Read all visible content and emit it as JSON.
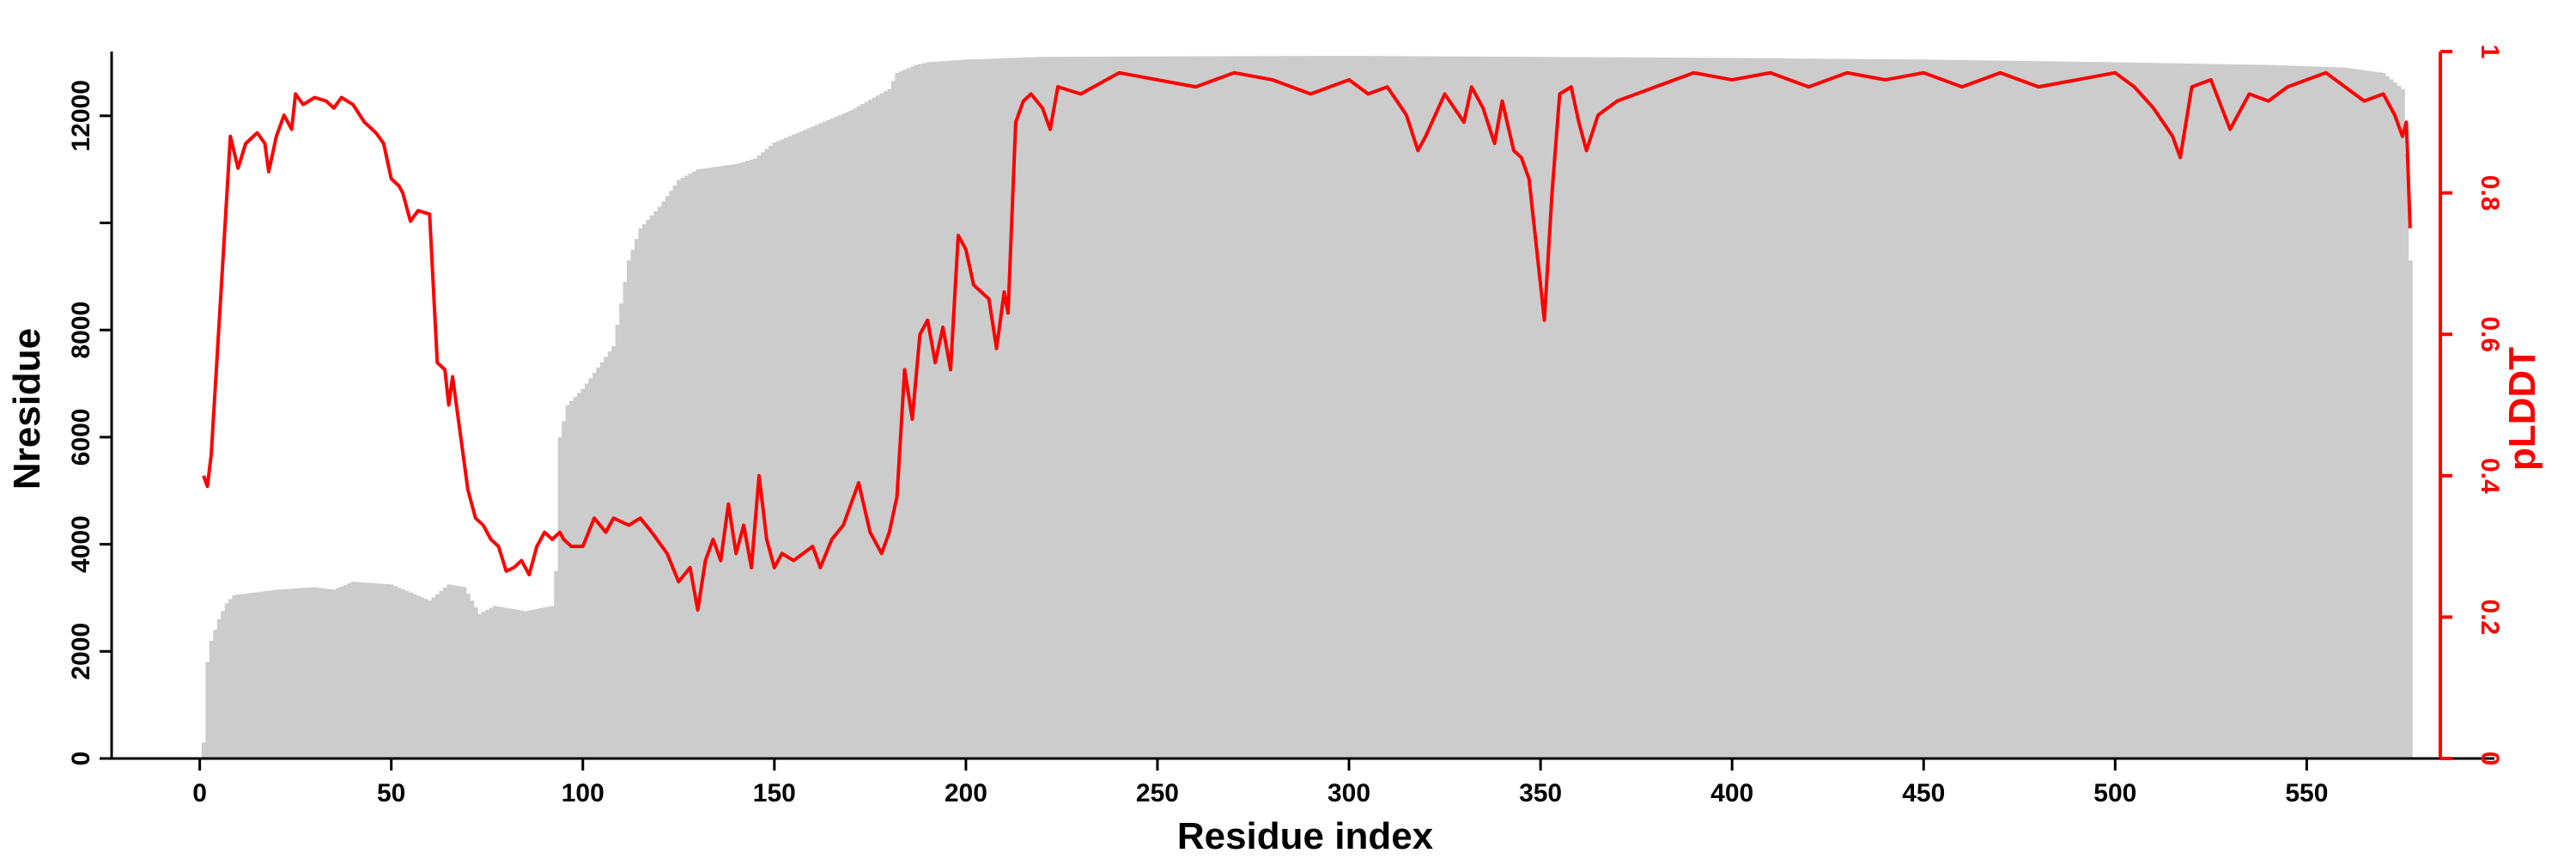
{
  "chart_data": {
    "type": "bar+line",
    "title": "",
    "xlabel": "Residue index",
    "ylabel_left": "Nresidue",
    "ylabel_right": "pLDDT",
    "xlim": [
      -23,
      599
    ],
    "ylim_left": [
      0,
      13200
    ],
    "ylim_right": [
      0,
      1
    ],
    "x_ticks": [
      0,
      50,
      100,
      150,
      200,
      250,
      300,
      350,
      400,
      450,
      500,
      550
    ],
    "y_left_ticks": [
      0,
      2000,
      4000,
      6000,
      8000,
      10000,
      12000
    ],
    "y_left_tick_labels": [
      "0",
      "2000",
      "4000",
      "6000",
      "8000",
      "",
      "12000"
    ],
    "y_right_ticks": [
      0,
      0.2,
      0.4,
      0.6,
      0.8,
      1
    ],
    "y_right_tick_labels": [
      "0",
      "0.2",
      "0.4",
      "0.6",
      "0.8",
      "1"
    ],
    "grid": false,
    "colors": {
      "bars": "#cccccc",
      "line": "#ff0000",
      "axis": "#000000",
      "right_axis": "#ff0000"
    },
    "series": [
      {
        "kind": "bar",
        "axis": "left",
        "x_step": 1,
        "keypoints": [
          [
            1,
            300
          ],
          [
            2,
            1800
          ],
          [
            3,
            2200
          ],
          [
            5,
            2600
          ],
          [
            7,
            2900
          ],
          [
            9,
            3050
          ],
          [
            20,
            3150
          ],
          [
            30,
            3200
          ],
          [
            35,
            3150
          ],
          [
            40,
            3300
          ],
          [
            50,
            3250
          ],
          [
            55,
            3100
          ],
          [
            60,
            2950
          ],
          [
            65,
            3250
          ],
          [
            69,
            3200
          ],
          [
            73,
            2700
          ],
          [
            77,
            2850
          ],
          [
            85,
            2750
          ],
          [
            92,
            2850
          ],
          [
            93,
            3500
          ],
          [
            94,
            6000
          ],
          [
            96,
            6600
          ],
          [
            100,
            6900
          ],
          [
            103,
            7200
          ],
          [
            108,
            7700
          ],
          [
            110,
            8500
          ],
          [
            112,
            9300
          ],
          [
            115,
            9900
          ],
          [
            120,
            10300
          ],
          [
            125,
            10800
          ],
          [
            130,
            11000
          ],
          [
            140,
            11100
          ],
          [
            145,
            11200
          ],
          [
            150,
            11500
          ],
          [
            160,
            11800
          ],
          [
            170,
            12100
          ],
          [
            175,
            12300
          ],
          [
            180,
            12500
          ],
          [
            182,
            12800
          ],
          [
            187,
            12950
          ],
          [
            190,
            13000
          ],
          [
            200,
            13050
          ],
          [
            220,
            13100
          ],
          [
            250,
            13110
          ],
          [
            300,
            13120
          ],
          [
            350,
            13100
          ],
          [
            400,
            13080
          ],
          [
            450,
            13050
          ],
          [
            500,
            13000
          ],
          [
            540,
            12950
          ],
          [
            560,
            12900
          ],
          [
            570,
            12800
          ],
          [
            575,
            12500
          ],
          [
            576,
            11300
          ],
          [
            577,
            9300
          ]
        ]
      },
      {
        "kind": "line",
        "axis": "right",
        "keypoints": [
          [
            1,
            0.4
          ],
          [
            2,
            0.385
          ],
          [
            3,
            0.43
          ],
          [
            4,
            0.52
          ],
          [
            6,
            0.7
          ],
          [
            8,
            0.88
          ],
          [
            10,
            0.835
          ],
          [
            12,
            0.87
          ],
          [
            15,
            0.885
          ],
          [
            17,
            0.87
          ],
          [
            18,
            0.83
          ],
          [
            20,
            0.88
          ],
          [
            22,
            0.91
          ],
          [
            24,
            0.89
          ],
          [
            25,
            0.94
          ],
          [
            27,
            0.925
          ],
          [
            30,
            0.935
          ],
          [
            33,
            0.93
          ],
          [
            35,
            0.92
          ],
          [
            37,
            0.935
          ],
          [
            40,
            0.925
          ],
          [
            43,
            0.9
          ],
          [
            46,
            0.885
          ],
          [
            48,
            0.87
          ],
          [
            50,
            0.82
          ],
          [
            52,
            0.81
          ],
          [
            53,
            0.8
          ],
          [
            55,
            0.76
          ],
          [
            57,
            0.775
          ],
          [
            60,
            0.77
          ],
          [
            62,
            0.56
          ],
          [
            64,
            0.55
          ],
          [
            65,
            0.5
          ],
          [
            66,
            0.54
          ],
          [
            67,
            0.5
          ],
          [
            68,
            0.46
          ],
          [
            70,
            0.38
          ],
          [
            72,
            0.34
          ],
          [
            74,
            0.33
          ],
          [
            76,
            0.31
          ],
          [
            78,
            0.3
          ],
          [
            80,
            0.265
          ],
          [
            82,
            0.27
          ],
          [
            84,
            0.28
          ],
          [
            86,
            0.26
          ],
          [
            88,
            0.3
          ],
          [
            90,
            0.32
          ],
          [
            92,
            0.31
          ],
          [
            94,
            0.32
          ],
          [
            95,
            0.31
          ],
          [
            97,
            0.3
          ],
          [
            100,
            0.3
          ],
          [
            103,
            0.34
          ],
          [
            106,
            0.32
          ],
          [
            108,
            0.34
          ],
          [
            112,
            0.33
          ],
          [
            115,
            0.34
          ],
          [
            118,
            0.32
          ],
          [
            122,
            0.29
          ],
          [
            125,
            0.25
          ],
          [
            128,
            0.27
          ],
          [
            130,
            0.21
          ],
          [
            132,
            0.28
          ],
          [
            134,
            0.31
          ],
          [
            136,
            0.28
          ],
          [
            138,
            0.36
          ],
          [
            140,
            0.29
          ],
          [
            142,
            0.33
          ],
          [
            144,
            0.27
          ],
          [
            146,
            0.4
          ],
          [
            148,
            0.31
          ],
          [
            150,
            0.27
          ],
          [
            152,
            0.29
          ],
          [
            155,
            0.28
          ],
          [
            160,
            0.3
          ],
          [
            162,
            0.27
          ],
          [
            165,
            0.31
          ],
          [
            168,
            0.33
          ],
          [
            170,
            0.36
          ],
          [
            172,
            0.39
          ],
          [
            175,
            0.32
          ],
          [
            178,
            0.29
          ],
          [
            180,
            0.32
          ],
          [
            182,
            0.37
          ],
          [
            184,
            0.55
          ],
          [
            186,
            0.48
          ],
          [
            188,
            0.6
          ],
          [
            190,
            0.62
          ],
          [
            192,
            0.56
          ],
          [
            194,
            0.61
          ],
          [
            196,
            0.55
          ],
          [
            198,
            0.74
          ],
          [
            200,
            0.72
          ],
          [
            202,
            0.67
          ],
          [
            206,
            0.65
          ],
          [
            208,
            0.58
          ],
          [
            210,
            0.66
          ],
          [
            211,
            0.63
          ],
          [
            213,
            0.9
          ],
          [
            215,
            0.93
          ],
          [
            217,
            0.94
          ],
          [
            220,
            0.92
          ],
          [
            222,
            0.89
          ],
          [
            224,
            0.95
          ],
          [
            230,
            0.94
          ],
          [
            240,
            0.97
          ],
          [
            250,
            0.96
          ],
          [
            260,
            0.95
          ],
          [
            270,
            0.97
          ],
          [
            280,
            0.96
          ],
          [
            290,
            0.94
          ],
          [
            300,
            0.96
          ],
          [
            305,
            0.94
          ],
          [
            310,
            0.95
          ],
          [
            315,
            0.91
          ],
          [
            318,
            0.86
          ],
          [
            320,
            0.88
          ],
          [
            325,
            0.94
          ],
          [
            330,
            0.9
          ],
          [
            332,
            0.95
          ],
          [
            335,
            0.92
          ],
          [
            338,
            0.87
          ],
          [
            340,
            0.93
          ],
          [
            343,
            0.86
          ],
          [
            345,
            0.85
          ],
          [
            347,
            0.82
          ],
          [
            349,
            0.72
          ],
          [
            351,
            0.62
          ],
          [
            353,
            0.8
          ],
          [
            355,
            0.94
          ],
          [
            358,
            0.95
          ],
          [
            360,
            0.9
          ],
          [
            362,
            0.86
          ],
          [
            365,
            0.91
          ],
          [
            370,
            0.93
          ],
          [
            380,
            0.95
          ],
          [
            390,
            0.97
          ],
          [
            400,
            0.96
          ],
          [
            410,
            0.97
          ],
          [
            420,
            0.95
          ],
          [
            430,
            0.97
          ],
          [
            440,
            0.96
          ],
          [
            450,
            0.97
          ],
          [
            460,
            0.95
          ],
          [
            470,
            0.97
          ],
          [
            480,
            0.95
          ],
          [
            490,
            0.96
          ],
          [
            500,
            0.97
          ],
          [
            505,
            0.95
          ],
          [
            510,
            0.92
          ],
          [
            515,
            0.88
          ],
          [
            517,
            0.85
          ],
          [
            520,
            0.95
          ],
          [
            525,
            0.96
          ],
          [
            530,
            0.89
          ],
          [
            535,
            0.94
          ],
          [
            540,
            0.93
          ],
          [
            545,
            0.95
          ],
          [
            550,
            0.96
          ],
          [
            555,
            0.97
          ],
          [
            560,
            0.95
          ],
          [
            565,
            0.93
          ],
          [
            570,
            0.94
          ],
          [
            573,
            0.91
          ],
          [
            575,
            0.88
          ],
          [
            576,
            0.9
          ],
          [
            577,
            0.75
          ]
        ]
      }
    ]
  }
}
